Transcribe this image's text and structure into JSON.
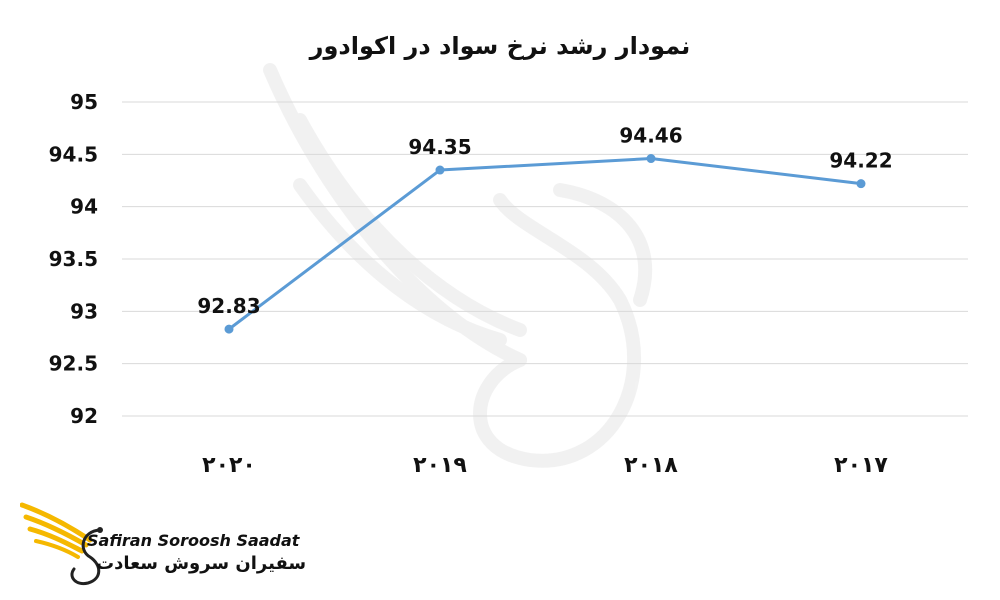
{
  "chart_data": {
    "type": "line",
    "title": "نمودار رشد نرخ سواد در اکوادور",
    "categories": [
      "۲۰۲۰",
      "۲۰۱۹",
      "۲۰۱۸",
      "۲۰۱۷"
    ],
    "series": [
      {
        "values": [
          92.83,
          94.35,
          94.46,
          94.22
        ],
        "color": "#5b9bd5"
      }
    ],
    "y_ticks": [
      "92",
      "92.5",
      "93",
      "93.5",
      "94",
      "94.5",
      "95"
    ],
    "ylim": [
      92,
      95
    ],
    "grid": true,
    "data_labels": [
      "92.83",
      "94.35",
      "94.46",
      "94.22"
    ]
  },
  "brand": {
    "name_en": "Safiran Soroosh Saadat",
    "name_fa": "سفیران سروش سعادت",
    "accent": "#f5b800"
  }
}
